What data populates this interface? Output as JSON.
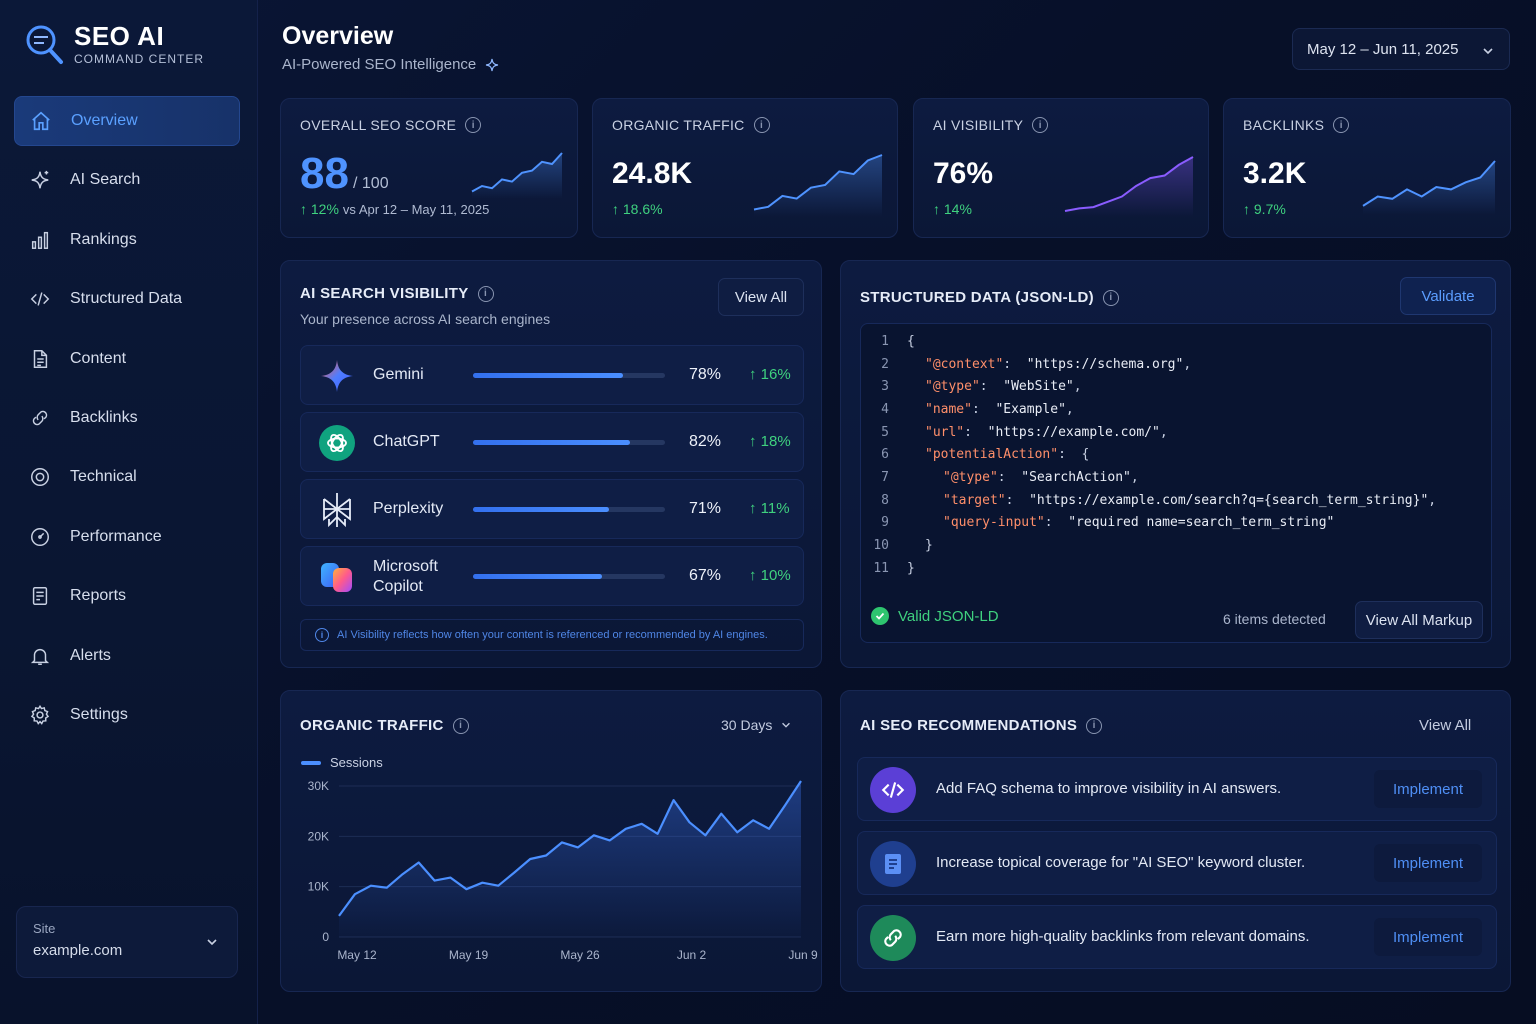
{
  "brand": {
    "title": "SEO AI",
    "subtitle": "COMMAND CENTER"
  },
  "sidebar": {
    "items": [
      {
        "label": "Overview",
        "icon": "home-icon",
        "active": true
      },
      {
        "label": "AI Search",
        "icon": "sparkle-icon"
      },
      {
        "label": "Rankings",
        "icon": "bar-chart-icon"
      },
      {
        "label": "Structured Data",
        "icon": "code-icon"
      },
      {
        "label": "Content",
        "icon": "document-icon"
      },
      {
        "label": "Backlinks",
        "icon": "link-icon"
      },
      {
        "label": "Technical",
        "icon": "target-icon"
      },
      {
        "label": "Performance",
        "icon": "gauge-icon"
      },
      {
        "label": "Reports",
        "icon": "report-icon"
      },
      {
        "label": "Alerts",
        "icon": "bell-icon"
      },
      {
        "label": "Settings",
        "icon": "gear-icon"
      }
    ],
    "site": {
      "label": "Site",
      "value": "example.com"
    }
  },
  "header": {
    "title": "Overview",
    "subtitle": "AI-Powered SEO Intelligence",
    "date_range": "May 12 – Jun 11, 2025"
  },
  "kpis": {
    "seo_score": {
      "label": "OVERALL SEO SCORE",
      "value": "88",
      "denominator": "/ 100",
      "change": "↑ 12%",
      "comparison": "vs Apr 12 – May 11, 2025"
    },
    "organic_traffic": {
      "label": "ORGANIC TRAFFIC",
      "value": "24.8K",
      "change": "↑ 18.6%"
    },
    "ai_visibility": {
      "label": "AI VISIBILITY",
      "value": "76%",
      "change": "↑ 14%"
    },
    "backlinks": {
      "label": "BACKLINKS",
      "value": "3.2K",
      "change": "↑ 9.7%"
    }
  },
  "ai_search": {
    "title": "AI SEARCH VISIBILITY",
    "subtitle": "Your presence across AI search engines",
    "view_all": "View All",
    "engines": [
      {
        "name": "Gemini",
        "percent": "78%",
        "value": 0.78,
        "change": "↑ 16%"
      },
      {
        "name": "ChatGPT",
        "percent": "82%",
        "value": 0.82,
        "change": "↑ 18%"
      },
      {
        "name": "Perplexity",
        "percent": "71%",
        "value": 0.71,
        "change": "↑ 11%"
      },
      {
        "name": "Microsoft Copilot",
        "name_line1": "Microsoft",
        "name_line2": "Copilot",
        "percent": "67%",
        "value": 0.67,
        "change": "↑ 10%"
      }
    ],
    "note": "AI Visibility reflects how often your content is referenced or recommended by AI engines."
  },
  "structured_data": {
    "title": "STRUCTURED DATA (JSON-LD)",
    "validate": "Validate",
    "lines": [
      {
        "n": "1",
        "indent": 0,
        "parts": [
          [
            "p",
            "{"
          ]
        ]
      },
      {
        "n": "2",
        "indent": 1,
        "parts": [
          [
            "k",
            "\"@context\""
          ],
          [
            "p",
            ":  "
          ],
          [
            "s",
            "\"https://schema.org\""
          ],
          [
            "p",
            ","
          ]
        ]
      },
      {
        "n": "3",
        "indent": 1,
        "parts": [
          [
            "k",
            "\"@type\""
          ],
          [
            "p",
            ":  "
          ],
          [
            "s",
            "\"WebSite\""
          ],
          [
            "p",
            ","
          ]
        ]
      },
      {
        "n": "4",
        "indent": 1,
        "parts": [
          [
            "k",
            "\"name\""
          ],
          [
            "p",
            ":  "
          ],
          [
            "s",
            "\"Example\""
          ],
          [
            "p",
            ","
          ]
        ]
      },
      {
        "n": "5",
        "indent": 1,
        "parts": [
          [
            "k",
            "\"url\""
          ],
          [
            "p",
            ":  "
          ],
          [
            "s",
            "\"https://example.com/\""
          ],
          [
            "p",
            ","
          ]
        ]
      },
      {
        "n": "6",
        "indent": 1,
        "parts": [
          [
            "k",
            "\"potentialAction\""
          ],
          [
            "p",
            ":  {"
          ]
        ]
      },
      {
        "n": "7",
        "indent": 2,
        "parts": [
          [
            "k",
            "\"@type\""
          ],
          [
            "p",
            ":  "
          ],
          [
            "s",
            "\"SearchAction\""
          ],
          [
            "p",
            ","
          ]
        ]
      },
      {
        "n": "8",
        "indent": 2,
        "parts": [
          [
            "k",
            "\"target\""
          ],
          [
            "p",
            ":  "
          ],
          [
            "s",
            "\"https://example.com/search?q={search_term_string}\""
          ],
          [
            "p",
            ","
          ]
        ]
      },
      {
        "n": "9",
        "indent": 2,
        "parts": [
          [
            "k",
            "\"query-input\""
          ],
          [
            "p",
            ":  "
          ],
          [
            "s",
            "\"required name=search_term_string\""
          ]
        ]
      },
      {
        "n": "10",
        "indent": 1,
        "parts": [
          [
            "p",
            "}"
          ]
        ]
      },
      {
        "n": "11",
        "indent": 0,
        "parts": [
          [
            "p",
            "}"
          ]
        ]
      }
    ],
    "status": "Valid JSON-LD",
    "items_detected": "6 items detected",
    "view_markup": "View All Markup"
  },
  "traffic_chart": {
    "title": "ORGANIC TRAFFIC",
    "range": "30 Days",
    "chart_data": {
      "type": "area",
      "series": [
        {
          "name": "Sessions",
          "values": [
            4200,
            8500,
            10200,
            9800,
            12500,
            14800,
            11200,
            11800,
            9500,
            10800,
            10200,
            12800,
            15500,
            16200,
            18800,
            17800,
            20200,
            19200,
            21500,
            22500,
            20500,
            27200,
            22800,
            20200,
            24500,
            20800,
            23200,
            21500,
            26200,
            31000
          ]
        }
      ],
      "x_tick_labels": [
        "May 12",
        "May 19",
        "May 26",
        "Jun 2",
        "Jun 9"
      ],
      "x_tick_index": [
        0,
        7,
        14,
        21,
        28
      ],
      "y_tick_labels": [
        "0",
        "10K",
        "20K",
        "30K"
      ],
      "y_ticks": [
        0,
        10000,
        20000,
        30000
      ],
      "ylim": [
        0,
        31000
      ],
      "legend": "top-left"
    }
  },
  "recommendations": {
    "title": "AI SEO RECOMMENDATIONS",
    "view_all": "View All",
    "items": [
      {
        "text": "Add FAQ schema to improve visibility in AI answers.",
        "action": "Implement",
        "icon": "code-icon",
        "color": "#5b3fd6"
      },
      {
        "text": "Increase topical coverage for \"AI SEO\" keyword cluster.",
        "action": "Implement",
        "icon": "document-icon",
        "color": "#1f3f8f"
      },
      {
        "text": "Earn more high-quality backlinks from relevant domains.",
        "action": "Implement",
        "icon": "link-icon",
        "color": "#1e8a5a"
      }
    ]
  },
  "colors": {
    "accent": "#4f93ff",
    "positive": "#3fd17f",
    "background": "#07102a",
    "key": "#ff8f6a"
  },
  "sparklines": {
    "seo_score": [
      5,
      10,
      8,
      16,
      14,
      22,
      24,
      32,
      30,
      40
    ],
    "organic_traffic": [
      4,
      6,
      14,
      12,
      20,
      22,
      32,
      30,
      40,
      44
    ],
    "ai_visibility": [
      3,
      5,
      6,
      10,
      14,
      22,
      28,
      30,
      38,
      44
    ],
    "backlinks": [
      6,
      14,
      12,
      20,
      14,
      22,
      20,
      26,
      30,
      44
    ]
  }
}
